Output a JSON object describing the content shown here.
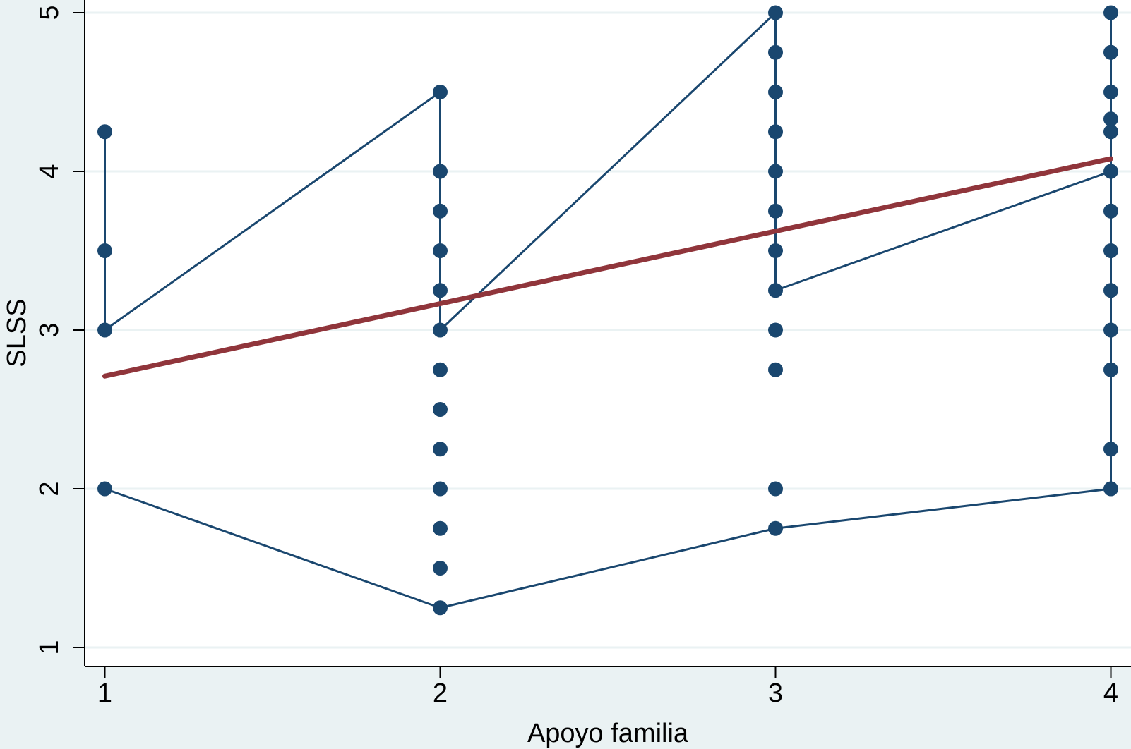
{
  "chart_data": {
    "type": "scatter",
    "title": "",
    "xlabel": "Apoyo familia",
    "ylabel": "SLSS",
    "xlim": [
      0.94,
      4.06
    ],
    "ylim": [
      0.88,
      5.08
    ],
    "xticks": [
      "1",
      "2",
      "3",
      "4"
    ],
    "yticks": [
      "1",
      "2",
      "3",
      "4",
      "5"
    ],
    "grid": "horizontal",
    "legend": "none",
    "colors": {
      "background": "#eaf2f3",
      "plot_area": "#ffffff",
      "grid": "#eaf2f3",
      "series": "#1a476f",
      "fit": "#90353b"
    },
    "series": [
      {
        "type": "scatter",
        "points": [
          {
            "x": 1,
            "y": 4.25
          },
          {
            "x": 1,
            "y": 3.5
          },
          {
            "x": 1,
            "y": 3
          },
          {
            "x": 1,
            "y": 2
          },
          {
            "x": 2,
            "y": 4.5
          },
          {
            "x": 2,
            "y": 4
          },
          {
            "x": 2,
            "y": 3.75
          },
          {
            "x": 2,
            "y": 3.5
          },
          {
            "x": 2,
            "y": 3.25
          },
          {
            "x": 2,
            "y": 3
          },
          {
            "x": 2,
            "y": 2.75
          },
          {
            "x": 2,
            "y": 2.5
          },
          {
            "x": 2,
            "y": 2.25
          },
          {
            "x": 2,
            "y": 2
          },
          {
            "x": 2,
            "y": 1.75
          },
          {
            "x": 2,
            "y": 1.5
          },
          {
            "x": 2,
            "y": 1.25
          },
          {
            "x": 3,
            "y": 5
          },
          {
            "x": 3,
            "y": 4.75
          },
          {
            "x": 3,
            "y": 4.5
          },
          {
            "x": 3,
            "y": 4.25
          },
          {
            "x": 3,
            "y": 4
          },
          {
            "x": 3,
            "y": 3.75
          },
          {
            "x": 3,
            "y": 3.5
          },
          {
            "x": 3,
            "y": 3.25
          },
          {
            "x": 3,
            "y": 3
          },
          {
            "x": 3,
            "y": 2.75
          },
          {
            "x": 3,
            "y": 2
          },
          {
            "x": 3,
            "y": 1.75
          },
          {
            "x": 4,
            "y": 5
          },
          {
            "x": 4,
            "y": 4.75
          },
          {
            "x": 4,
            "y": 4.5
          },
          {
            "x": 4,
            "y": 4.33
          },
          {
            "x": 4,
            "y": 4.25
          },
          {
            "x": 4,
            "y": 4
          },
          {
            "x": 4,
            "y": 3.75
          },
          {
            "x": 4,
            "y": 3.5
          },
          {
            "x": 4,
            "y": 3.25
          },
          {
            "x": 4,
            "y": 3
          },
          {
            "x": 4,
            "y": 2.75
          },
          {
            "x": 4,
            "y": 2.25
          },
          {
            "x": 4,
            "y": 2
          }
        ]
      },
      {
        "type": "line",
        "points": [
          {
            "x": 1,
            "y": 4.25
          },
          {
            "x": 1,
            "y": 3
          },
          {
            "x": 2,
            "y": 4.5
          },
          {
            "x": 2,
            "y": 3
          },
          {
            "x": 3,
            "y": 5
          },
          {
            "x": 3,
            "y": 3.25
          },
          {
            "x": 4,
            "y": 4
          },
          {
            "x": 4,
            "y": 5
          },
          {
            "x": 4,
            "y": 2
          },
          {
            "x": 3,
            "y": 1.75
          },
          {
            "x": 2,
            "y": 1.25
          },
          {
            "x": 1,
            "y": 2
          }
        ]
      },
      {
        "type": "fit",
        "points": [
          {
            "x": 1,
            "y": 2.71
          },
          {
            "x": 4,
            "y": 4.08
          }
        ]
      }
    ]
  }
}
